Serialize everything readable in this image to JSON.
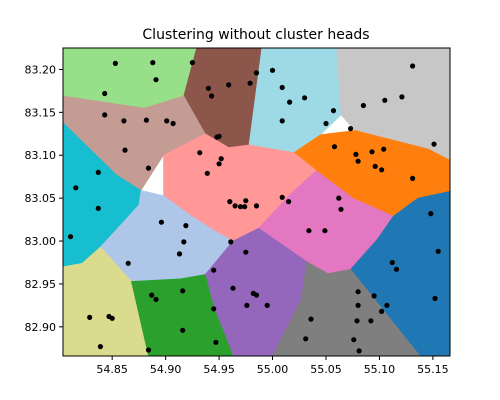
{
  "chart_data": {
    "type": "scatter",
    "title": "Clustering without cluster heads",
    "xlabel": "",
    "ylabel": "",
    "xlim": [
      54.804,
      55.166
    ],
    "ylim": [
      82.866,
      83.225
    ],
    "xticks": [
      54.85,
      54.9,
      54.95,
      55.0,
      55.05,
      55.1,
      55.15
    ],
    "xtick_labels": [
      "54.85",
      "54.90",
      "54.95",
      "55.00",
      "55.05",
      "55.10",
      "55.15"
    ],
    "yticks": [
      82.9,
      82.95,
      83.0,
      83.05,
      83.1,
      83.15,
      83.2
    ],
    "ytick_labels": [
      "82.90",
      "82.95",
      "83.00",
      "83.05",
      "83.10",
      "83.15",
      "83.20"
    ],
    "grid": false,
    "point_color": "#000000",
    "regions": [
      {
        "color": "#98df8a",
        "polygon": [
          [
            54.804,
            83.225
          ],
          [
            54.929,
            83.225
          ],
          [
            54.917,
            83.169
          ],
          [
            54.88,
            83.155
          ],
          [
            54.804,
            83.169
          ]
        ]
      },
      {
        "color": "#8c564b",
        "polygon": [
          [
            54.929,
            83.225
          ],
          [
            54.99,
            83.225
          ],
          [
            54.978,
            83.112
          ],
          [
            54.959,
            83.109
          ],
          [
            54.937,
            83.125
          ],
          [
            54.917,
            83.169
          ]
        ]
      },
      {
        "color": "#9edae5",
        "polygon": [
          [
            54.99,
            83.225
          ],
          [
            55.06,
            83.225
          ],
          [
            55.064,
            83.147
          ],
          [
            55.045,
            83.124
          ],
          [
            55.02,
            83.103
          ],
          [
            54.978,
            83.112
          ]
        ]
      },
      {
        "color": "#c7c7c7",
        "polygon": [
          [
            55.06,
            83.225
          ],
          [
            55.166,
            83.225
          ],
          [
            55.166,
            83.094
          ],
          [
            55.146,
            83.107
          ],
          [
            55.077,
            83.129
          ],
          [
            55.064,
            83.147
          ]
        ]
      },
      {
        "color": "#c49c94",
        "polygon": [
          [
            54.804,
            83.169
          ],
          [
            54.88,
            83.155
          ],
          [
            54.917,
            83.169
          ],
          [
            54.937,
            83.125
          ],
          [
            54.898,
            83.1
          ],
          [
            54.877,
            83.059
          ],
          [
            54.854,
            83.077
          ],
          [
            54.804,
            83.138
          ]
        ]
      },
      {
        "color": "#ff7f0e",
        "polygon": [
          [
            55.045,
            83.124
          ],
          [
            55.077,
            83.129
          ],
          [
            55.146,
            83.107
          ],
          [
            55.166,
            83.094
          ],
          [
            55.166,
            83.058
          ],
          [
            55.136,
            83.05
          ],
          [
            55.113,
            83.029
          ],
          [
            55.075,
            83.05
          ],
          [
            55.041,
            83.082
          ],
          [
            55.02,
            83.103
          ]
        ]
      },
      {
        "color": "#17becf",
        "polygon": [
          [
            54.804,
            83.138
          ],
          [
            54.854,
            83.077
          ],
          [
            54.877,
            83.059
          ],
          [
            54.875,
            83.042
          ],
          [
            54.839,
            82.993
          ],
          [
            54.822,
            82.974
          ],
          [
            54.804,
            82.97
          ]
        ]
      },
      {
        "color": "#ff9896",
        "polygon": [
          [
            54.937,
            83.125
          ],
          [
            54.959,
            83.109
          ],
          [
            54.978,
            83.112
          ],
          [
            55.02,
            83.103
          ],
          [
            55.041,
            83.082
          ],
          [
            55.017,
            83.055
          ],
          [
            54.987,
            83.015
          ],
          [
            54.963,
            83.0
          ],
          [
            54.947,
            83.011
          ],
          [
            54.923,
            83.03
          ],
          [
            54.898,
            83.053
          ],
          [
            54.898,
            83.1
          ]
        ]
      },
      {
        "color": "#e377c2",
        "polygon": [
          [
            55.041,
            83.082
          ],
          [
            55.075,
            83.05
          ],
          [
            55.113,
            83.029
          ],
          [
            55.098,
            83.002
          ],
          [
            55.073,
            82.967
          ],
          [
            55.052,
            82.962
          ],
          [
            55.032,
            82.976
          ],
          [
            54.987,
            83.015
          ],
          [
            55.017,
            83.055
          ]
        ]
      },
      {
        "color": "#aec7e8",
        "polygon": [
          [
            54.877,
            83.059
          ],
          [
            54.898,
            83.053
          ],
          [
            54.923,
            83.03
          ],
          [
            54.947,
            83.011
          ],
          [
            54.963,
            83.0
          ],
          [
            54.937,
            82.961
          ],
          [
            54.914,
            82.956
          ],
          [
            54.868,
            82.953
          ],
          [
            54.839,
            82.993
          ],
          [
            54.875,
            83.042
          ]
        ]
      },
      {
        "color": "#1f77b4",
        "polygon": [
          [
            55.113,
            83.029
          ],
          [
            55.136,
            83.05
          ],
          [
            55.166,
            83.058
          ],
          [
            55.166,
            82.866
          ],
          [
            55.138,
            82.866
          ],
          [
            55.073,
            82.967
          ],
          [
            55.098,
            83.002
          ]
        ]
      },
      {
        "color": "#9467bd",
        "polygon": [
          [
            54.963,
            83.0
          ],
          [
            54.987,
            83.015
          ],
          [
            55.032,
            82.976
          ],
          [
            55.027,
            82.932
          ],
          [
            55.0,
            82.866
          ],
          [
            54.963,
            82.866
          ],
          [
            54.945,
            82.923
          ],
          [
            54.937,
            82.961
          ]
        ]
      },
      {
        "color": "#dbdb8d",
        "polygon": [
          [
            54.804,
            82.97
          ],
          [
            54.822,
            82.974
          ],
          [
            54.839,
            82.993
          ],
          [
            54.868,
            82.953
          ],
          [
            54.884,
            82.866
          ],
          [
            54.804,
            82.866
          ]
        ]
      },
      {
        "color": "#2ca02c",
        "polygon": [
          [
            54.868,
            82.953
          ],
          [
            54.914,
            82.956
          ],
          [
            54.937,
            82.961
          ],
          [
            54.945,
            82.923
          ],
          [
            54.963,
            82.866
          ],
          [
            54.884,
            82.866
          ]
        ]
      },
      {
        "color": "#7f7f7f",
        "polygon": [
          [
            55.0,
            82.866
          ],
          [
            55.138,
            82.866
          ],
          [
            55.073,
            82.967
          ],
          [
            55.052,
            82.962
          ],
          [
            55.032,
            82.976
          ],
          [
            55.027,
            82.932
          ]
        ]
      }
    ],
    "points": [
      [
        54.853,
        83.207
      ],
      [
        54.888,
        83.208
      ],
      [
        54.891,
        83.188
      ],
      [
        54.925,
        83.208
      ],
      [
        54.843,
        83.172
      ],
      [
        54.843,
        83.147
      ],
      [
        54.882,
        83.141
      ],
      [
        54.861,
        83.14
      ],
      [
        54.907,
        83.137
      ],
      [
        54.901,
        83.14
      ],
      [
        54.94,
        83.178
      ],
      [
        54.959,
        83.182
      ],
      [
        54.943,
        83.169
      ],
      [
        54.979,
        83.184
      ],
      [
        54.985,
        83.196
      ],
      [
        54.95,
        83.122
      ],
      [
        54.948,
        83.121
      ],
      [
        54.932,
        83.103
      ],
      [
        55.0,
        83.199
      ],
      [
        55.009,
        83.179
      ],
      [
        55.016,
        83.162
      ],
      [
        55.03,
        83.167
      ],
      [
        55.009,
        83.14
      ],
      [
        55.05,
        83.137
      ],
      [
        55.057,
        83.152
      ],
      [
        55.073,
        83.131
      ],
      [
        55.085,
        83.158
      ],
      [
        55.105,
        83.164
      ],
      [
        55.121,
        83.168
      ],
      [
        55.131,
        83.204
      ],
      [
        55.151,
        83.113
      ],
      [
        54.862,
        83.106
      ],
      [
        54.884,
        83.085
      ],
      [
        54.837,
        83.08
      ],
      [
        54.816,
        83.062
      ],
      [
        54.837,
        83.038
      ],
      [
        54.811,
        83.005
      ],
      [
        55.058,
        83.11
      ],
      [
        55.08,
        83.093
      ],
      [
        55.078,
        83.101
      ],
      [
        55.093,
        83.104
      ],
      [
        55.104,
        83.107
      ],
      [
        55.096,
        83.087
      ],
      [
        55.102,
        83.083
      ],
      [
        55.131,
        83.073
      ],
      [
        54.952,
        83.096
      ],
      [
        54.95,
        83.09
      ],
      [
        54.939,
        83.079
      ],
      [
        54.96,
        83.046
      ],
      [
        54.965,
        83.041
      ],
      [
        54.97,
        83.04
      ],
      [
        54.974,
        83.04
      ],
      [
        54.975,
        83.047
      ],
      [
        54.985,
        83.041
      ],
      [
        55.009,
        83.051
      ],
      [
        55.015,
        83.046
      ],
      [
        55.062,
        83.05
      ],
      [
        55.064,
        83.037
      ],
      [
        55.034,
        83.012
      ],
      [
        55.049,
        83.012
      ],
      [
        54.896,
        83.022
      ],
      [
        54.919,
        83.018
      ],
      [
        54.917,
        82.999
      ],
      [
        54.913,
        82.985
      ],
      [
        54.865,
        82.974
      ],
      [
        55.148,
        83.032
      ],
      [
        55.155,
        82.988
      ],
      [
        55.112,
        82.975
      ],
      [
        55.116,
        82.967
      ],
      [
        55.152,
        82.933
      ],
      [
        54.961,
        82.999
      ],
      [
        54.975,
        82.987
      ],
      [
        54.945,
        82.966
      ],
      [
        54.963,
        82.945
      ],
      [
        54.982,
        82.939
      ],
      [
        54.985,
        82.937
      ],
      [
        54.976,
        82.925
      ],
      [
        54.995,
        82.925
      ],
      [
        54.829,
        82.911
      ],
      [
        54.847,
        82.912
      ],
      [
        54.85,
        82.91
      ],
      [
        54.839,
        82.877
      ],
      [
        54.887,
        82.937
      ],
      [
        54.891,
        82.932
      ],
      [
        54.916,
        82.942
      ],
      [
        54.945,
        82.921
      ],
      [
        54.916,
        82.896
      ],
      [
        54.947,
        82.882
      ],
      [
        54.884,
        82.873
      ],
      [
        55.031,
        82.886
      ],
      [
        55.036,
        82.909
      ],
      [
        55.08,
        82.941
      ],
      [
        55.095,
        82.936
      ],
      [
        55.107,
        82.925
      ],
      [
        55.102,
        82.918
      ],
      [
        55.08,
        82.925
      ],
      [
        55.079,
        82.907
      ],
      [
        55.092,
        82.907
      ],
      [
        55.076,
        82.885
      ],
      [
        55.081,
        82.872
      ]
    ]
  }
}
